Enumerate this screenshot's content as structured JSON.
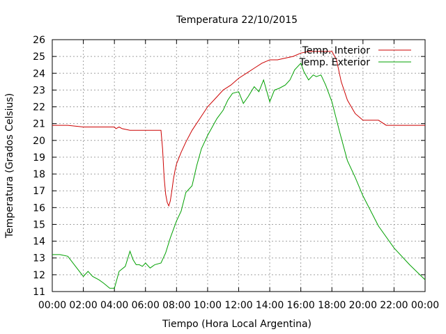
{
  "chart_data": {
    "type": "line",
    "title": "Temperatura 22/10/2015",
    "xlabel": "Tiempo (Hora Local Argentina)",
    "ylabel": "Temperatura (Grados Celsius)",
    "xlim": [
      0,
      24
    ],
    "ylim": [
      11,
      26
    ],
    "grid": true,
    "legend": "top-right",
    "x_tick_labels": [
      "00:00",
      "02:00",
      "04:00",
      "06:00",
      "08:00",
      "10:00",
      "12:00",
      "14:00",
      "16:00",
      "18:00",
      "20:00",
      "22:00",
      "00:00"
    ],
    "y_ticks": [
      11,
      12,
      13,
      14,
      15,
      16,
      17,
      18,
      19,
      20,
      21,
      22,
      23,
      24,
      25,
      26
    ],
    "series": [
      {
        "name": "Temp. Interior",
        "color": "#cc0000",
        "x": [
          0,
          1,
          2,
          3,
          4,
          4.1,
          4.3,
          4.5,
          5,
          6,
          7,
          7.1,
          7.2,
          7.3,
          7.4,
          7.5,
          7.6,
          7.7,
          7.8,
          7.9,
          8,
          8.3,
          8.6,
          9,
          9.5,
          10,
          10.5,
          11,
          11.5,
          12,
          12.5,
          13,
          13.5,
          14,
          14.5,
          15,
          15.5,
          16,
          16.5,
          17,
          17.5,
          18,
          18.3,
          18.6,
          19,
          19.5,
          20,
          20.5,
          21,
          21.5,
          22,
          22.5,
          23,
          24
        ],
        "y": [
          20.9,
          20.9,
          20.8,
          20.8,
          20.8,
          20.7,
          20.8,
          20.7,
          20.6,
          20.6,
          20.6,
          19.5,
          17.8,
          16.8,
          16.3,
          16.1,
          16.4,
          17,
          17.7,
          18.2,
          18.6,
          19.3,
          19.9,
          20.6,
          21.3,
          22,
          22.5,
          23,
          23.3,
          23.7,
          24,
          24.3,
          24.6,
          24.8,
          24.8,
          24.9,
          25,
          25.2,
          25.3,
          25.3,
          25.3,
          25.3,
          24.8,
          23.5,
          22.4,
          21.6,
          21.2,
          21.2,
          21.2,
          20.9,
          20.9,
          20.9,
          20.9,
          20.9
        ]
      },
      {
        "name": "Temp. Exterior",
        "color": "#00a000",
        "x": [
          0,
          0.5,
          1,
          1.5,
          2,
          2.3,
          2.6,
          3,
          3.3,
          3.7,
          4,
          4.3,
          4.7,
          5,
          5.2,
          5.4,
          5.6,
          5.8,
          6,
          6.3,
          6.6,
          7,
          7.3,
          7.6,
          8,
          8.3,
          8.6,
          9,
          9.3,
          9.6,
          10,
          10.3,
          10.6,
          11,
          11.3,
          11.6,
          12,
          12.3,
          12.6,
          13,
          13.3,
          13.6,
          14,
          14.3,
          14.6,
          15,
          15.3,
          15.6,
          16,
          16.2,
          16.5,
          16.8,
          17,
          17.3,
          17.6,
          18,
          18.5,
          19,
          19.5,
          20,
          21,
          22,
          23,
          24
        ],
        "y": [
          13.2,
          13.2,
          13.1,
          12.5,
          11.9,
          12.2,
          11.9,
          11.7,
          11.5,
          11.2,
          11.2,
          12.2,
          12.5,
          13.4,
          12.9,
          12.6,
          12.6,
          12.5,
          12.7,
          12.4,
          12.6,
          12.7,
          13.3,
          14.2,
          15.2,
          15.8,
          16.9,
          17.3,
          18.5,
          19.5,
          20.3,
          20.8,
          21.3,
          21.8,
          22.4,
          22.8,
          22.9,
          22.2,
          22.6,
          23.2,
          22.9,
          23.6,
          22.3,
          23.0,
          23.1,
          23.3,
          23.6,
          24.2,
          24.6,
          24.1,
          23.6,
          23.9,
          23.8,
          23.9,
          23.3,
          22.3,
          20.5,
          18.8,
          17.8,
          16.7,
          14.9,
          13.6,
          12.6,
          11.7
        ]
      }
    ]
  }
}
